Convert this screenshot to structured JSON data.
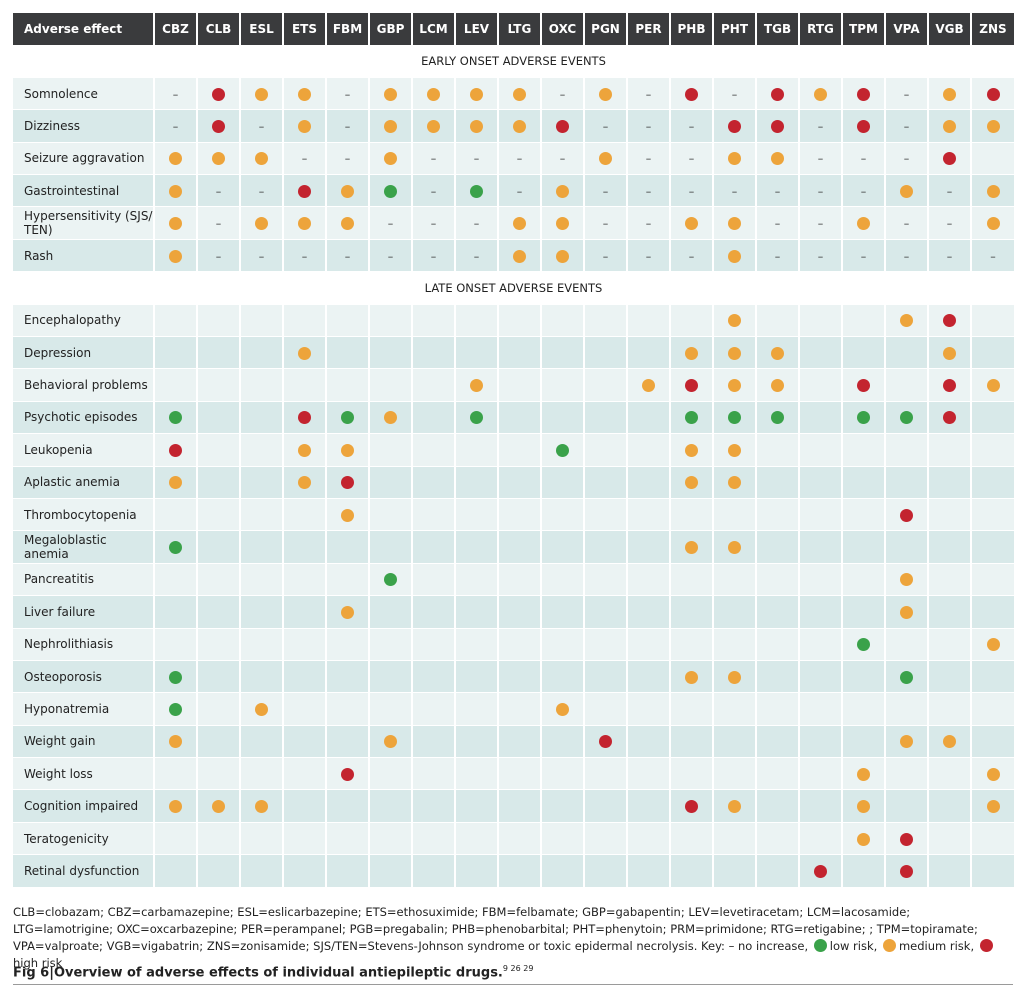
{
  "table": {
    "header_label": "Adverse effect",
    "drugs": [
      "CBZ",
      "CLB",
      "ESL",
      "ETS",
      "FBM",
      "GBP",
      "LCM",
      "LEV",
      "LTG",
      "OXC",
      "PGN",
      "PER",
      "PHB",
      "PHT",
      "TGB",
      "RTG",
      "TPM",
      "VPA",
      "VGB",
      "ZNS"
    ],
    "sections": [
      {
        "title": "EARLY ONSET ADVERSE EVENTS",
        "rows": [
          {
            "label": "Somnolence",
            "cells": [
              "-",
              "h",
              "m",
              "m",
              "-",
              "m",
              "m",
              "m",
              "m",
              "-",
              "m",
              "-",
              "h",
              "-",
              "h",
              "m",
              "h",
              "-",
              "m",
              "h"
            ]
          },
          {
            "label": "Dizziness",
            "cells": [
              "-",
              "h",
              "-",
              "m",
              "-",
              "m",
              "m",
              "m",
              "m",
              "h",
              "-",
              "-",
              "-",
              "h",
              "h",
              "-",
              "h",
              "-",
              "m",
              "m"
            ]
          },
          {
            "label": "Seizure aggravation",
            "cells": [
              "m",
              "m",
              "m",
              "-",
              "-",
              "m",
              "-",
              "-",
              "-",
              "-",
              "m",
              "-",
              "-",
              "m",
              "m",
              "-",
              "-",
              "-",
              "h",
              ""
            ]
          },
          {
            "label": "Gastrointestinal",
            "cells": [
              "m",
              "-",
              "-",
              "h",
              "m",
              "l",
              "-",
              "l",
              "-",
              "m",
              "-",
              "-",
              "-",
              "-",
              "-",
              "-",
              "-",
              "m",
              "-",
              "m"
            ]
          },
          {
            "label": "Hypersensitivity (SJS/ TEN)",
            "cells": [
              "m",
              "-",
              "m",
              "m",
              "m",
              "-",
              "-",
              "-",
              "m",
              "m",
              "-",
              "-",
              "m",
              "m",
              "-",
              "-",
              "m",
              "-",
              "-",
              "m"
            ]
          },
          {
            "label": "Rash",
            "cells": [
              "m",
              "-",
              "-",
              "-",
              "-",
              "-",
              "-",
              "-",
              "m",
              "m",
              "-",
              "-",
              "-",
              "m",
              "-",
              "-",
              "-",
              "-",
              "-",
              "-"
            ]
          }
        ]
      },
      {
        "title": "LATE ONSET ADVERSE EVENTS",
        "rows": [
          {
            "label": "Encephalopathy",
            "cells": [
              "",
              "",
              "",
              "",
              "",
              "",
              "",
              "",
              "",
              "",
              "",
              "",
              "",
              "m",
              "",
              "",
              "",
              "m",
              "h",
              ""
            ]
          },
          {
            "label": "Depression",
            "cells": [
              "",
              "",
              "",
              "m",
              "",
              "",
              "",
              "",
              "",
              "",
              "",
              "",
              "m",
              "m",
              "m",
              "",
              "",
              "",
              "m",
              ""
            ]
          },
          {
            "label": "Behavioral problems",
            "cells": [
              "",
              "",
              "",
              "",
              "",
              "",
              "",
              "m",
              "",
              "",
              "",
              "m",
              "h",
              "m",
              "m",
              "",
              "h",
              "",
              "h",
              "m"
            ]
          },
          {
            "label": "Psychotic episodes",
            "cells": [
              "l",
              "",
              "",
              "h",
              "l",
              "m",
              "",
              "l",
              "",
              "",
              "",
              "",
              "l",
              "l",
              "l",
              "",
              "l",
              "l",
              "h",
              ""
            ]
          },
          {
            "label": "Leukopenia",
            "cells": [
              "h",
              "",
              "",
              "m",
              "m",
              "",
              "",
              "",
              "",
              "l",
              "",
              "",
              "m",
              "m",
              "",
              "",
              "",
              "",
              "",
              ""
            ]
          },
          {
            "label": "Aplastic anemia",
            "cells": [
              "m",
              "",
              "",
              "m",
              "h",
              "",
              "",
              "",
              "",
              "",
              "",
              "",
              "m",
              "m",
              "",
              "",
              "",
              "",
              "",
              ""
            ]
          },
          {
            "label": "Thrombocytopenia",
            "cells": [
              "",
              "",
              "",
              "",
              "m",
              "",
              "",
              "",
              "",
              "",
              "",
              "",
              "",
              "",
              "",
              "",
              "",
              "h",
              "",
              ""
            ]
          },
          {
            "label": "Megaloblastic anemia",
            "cells": [
              "l",
              "",
              "",
              "",
              "",
              "",
              "",
              "",
              "",
              "",
              "",
              "",
              "m",
              "m",
              "",
              "",
              "",
              "",
              "",
              ""
            ]
          },
          {
            "label": "Pancreatitis",
            "cells": [
              "",
              "",
              "",
              "",
              "",
              "l",
              "",
              "",
              "",
              "",
              "",
              "",
              "",
              "",
              "",
              "",
              "",
              "m",
              "",
              ""
            ]
          },
          {
            "label": "Liver failure",
            "cells": [
              "",
              "",
              "",
              "",
              "m",
              "",
              "",
              "",
              "",
              "",
              "",
              "",
              "",
              "",
              "",
              "",
              "",
              "m",
              "",
              ""
            ]
          },
          {
            "label": "Nephrolithiasis",
            "cells": [
              "",
              "",
              "",
              "",
              "",
              "",
              "",
              "",
              "",
              "",
              "",
              "",
              "",
              "",
              "",
              "",
              "l",
              "",
              "",
              "m"
            ]
          },
          {
            "label": "Osteoporosis",
            "cells": [
              "l",
              "",
              "",
              "",
              "",
              "",
              "",
              "",
              "",
              "",
              "",
              "",
              "m",
              "m",
              "",
              "",
              "",
              "l",
              "",
              ""
            ]
          },
          {
            "label": "Hyponatremia",
            "cells": [
              "l",
              "",
              "m",
              "",
              "",
              "",
              "",
              "",
              "",
              "m",
              "",
              "",
              "",
              "",
              "",
              "",
              "",
              "",
              "",
              ""
            ]
          },
          {
            "label": "Weight gain",
            "cells": [
              "m",
              "",
              "",
              "",
              "",
              "m",
              "",
              "",
              "",
              "",
              "h",
              "",
              "",
              "",
              "",
              "",
              "",
              "m",
              "m",
              ""
            ]
          },
          {
            "label": "Weight loss",
            "cells": [
              "",
              "",
              "",
              "",
              "h",
              "",
              "",
              "",
              "",
              "",
              "",
              "",
              "",
              "",
              "",
              "",
              "m",
              "",
              "",
              "m"
            ]
          },
          {
            "label": "Cognition impaired",
            "cells": [
              "m",
              "m",
              "m",
              "",
              "",
              "",
              "",
              "",
              "",
              "",
              "",
              "",
              "h",
              "m",
              "",
              "",
              "m",
              "",
              "",
              "m"
            ]
          },
          {
            "label": "Teratogenicity",
            "cells": [
              "",
              "",
              "",
              "",
              "",
              "",
              "",
              "",
              "",
              "",
              "",
              "",
              "",
              "",
              "",
              "",
              "m",
              "h",
              "",
              ""
            ]
          },
          {
            "label": "Retinal dysfunction",
            "cells": [
              "",
              "",
              "",
              "",
              "",
              "",
              "",
              "",
              "",
              "",
              "",
              "",
              "",
              "",
              "",
              "h",
              "",
              "h",
              "",
              ""
            ]
          }
        ]
      }
    ],
    "dash_symbol": "–"
  },
  "footnote": {
    "abbreviations": "CLB=clobazam; CBZ=carbamazepine; ESL=eslicarbazepine; ETS=ethosuximide; FBM=felbamate; GBP=gabapentin; LEV=levetiracetam; LCM=lacosamide; LTG=lamotrigine; OXC=oxcarbazepine; PER=perampanel; PGB=pregabalin; PHB=phenobarbital; PHT=phenytoin; PRM=primidone; RTG=retigabine; ; TPM=topiramate; VPA=valproate; VGB=vigabatrin; ZNS=zonisamide; SJS/TEN=Stevens-Johnson syndrome or toxic epidermal necrolysis.",
    "key_prefix": "Key: – no increase,",
    "low_label": "low risk,",
    "medium_label": "medium risk,",
    "high_label": "high risk"
  },
  "caption": {
    "fig_label": "Fig 6",
    "separator": "|",
    "text": "Overview of adverse effects of individual antiepileptic drugs.",
    "refs": "9  26  29"
  },
  "colors": {
    "medium_risk": "#eda43b",
    "high_risk": "#c3242f",
    "low_risk": "#3aa24a",
    "header_bg": "#3a3b3d",
    "row_light": "#ebf3f3",
    "row_dark": "#d8e9e9"
  }
}
